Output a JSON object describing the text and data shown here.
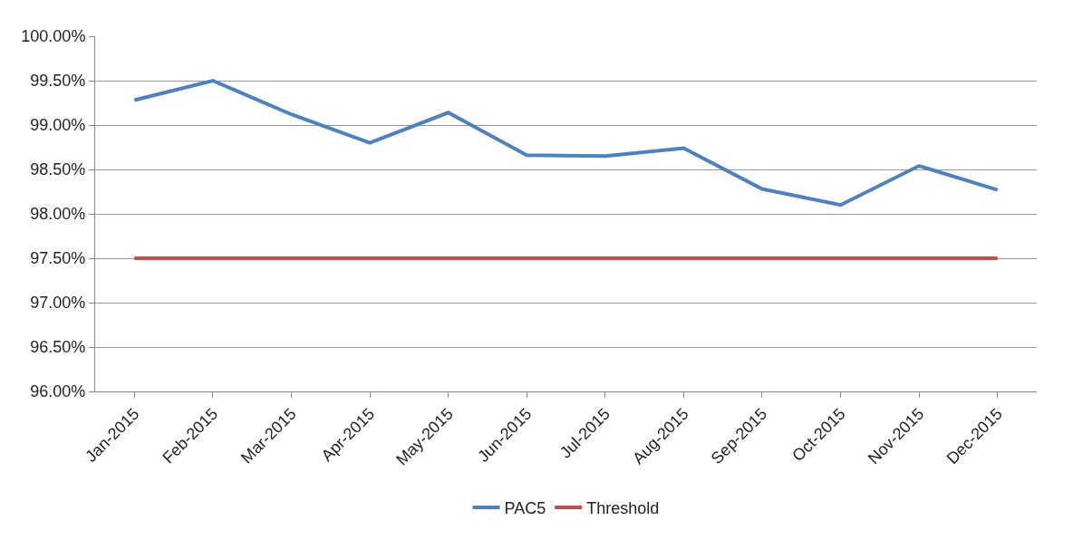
{
  "chart_data": {
    "type": "line",
    "categories": [
      "Jan-2015",
      "Feb-2015",
      "Mar-2015",
      "Apr-2015",
      "May-2015",
      "Jun-2015",
      "Jul-2015",
      "Aug-2015",
      "Sep-2015",
      "Oct-2015",
      "Nov-2015",
      "Dec-2015"
    ],
    "series": [
      {
        "name": "PAC5",
        "color": "#4f81bd",
        "values": [
          99.28,
          99.5,
          99.12,
          98.8,
          99.14,
          98.66,
          98.65,
          98.74,
          98.28,
          98.1,
          98.54,
          98.27
        ]
      },
      {
        "name": "Threshold",
        "color": "#c0504d",
        "values": [
          97.5,
          97.5,
          97.5,
          97.5,
          97.5,
          97.5,
          97.5,
          97.5,
          97.5,
          97.5,
          97.5,
          97.5
        ]
      }
    ],
    "ylim": [
      96,
      100
    ],
    "yticks": [
      {
        "value": 96,
        "label": "96.00%"
      },
      {
        "value": 96.5,
        "label": "96.50%"
      },
      {
        "value": 97,
        "label": "97.00%"
      },
      {
        "value": 97.5,
        "label": "97.50%"
      },
      {
        "value": 98,
        "label": "98.00%"
      },
      {
        "value": 98.5,
        "label": "98.50%"
      },
      {
        "value": 99,
        "label": "99.00%"
      },
      {
        "value": 99.5,
        "label": "99.50%"
      },
      {
        "value": 100,
        "label": "100.00%"
      }
    ],
    "grid": "y",
    "legend": "bottom",
    "marker": "none",
    "line_style": "solid"
  }
}
